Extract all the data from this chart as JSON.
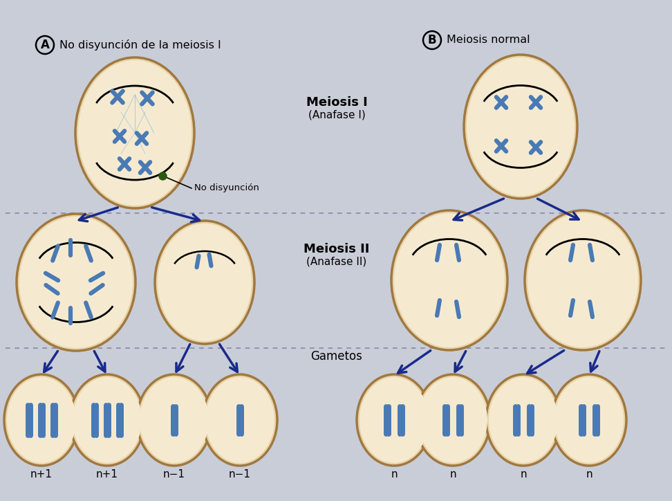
{
  "bg_color": "#c8cdd8",
  "cell_fill_outer": "#e8d4a8",
  "cell_fill_inner": "#f5ead0",
  "cell_edge": "#a07840",
  "chr_color": "#4a7ab5",
  "chr_lw": 4.5,
  "arrow_color": "#1a2a8a",
  "title_A": "No disyunción de la meiosis I",
  "title_B": "Meiosis normal",
  "label_meiosis1": "Meiosis I",
  "label_anafase1": "(Anafase I)",
  "label_meiosis2": "Meiosis II",
  "label_anafase2": "(Anafase II)",
  "label_gametos": "Gametos",
  "label_no_dis": "No disyunción",
  "gamete_labels_A": [
    "n+1",
    "n+1",
    "n−1",
    "n−1"
  ],
  "gamete_labels_B": [
    "n",
    "n",
    "n",
    "n"
  ],
  "dot_color": "#2a5a10",
  "spindle_color": "#90b8d8"
}
